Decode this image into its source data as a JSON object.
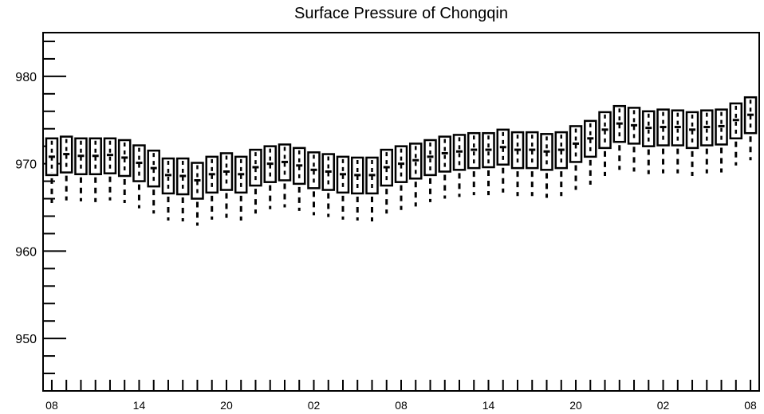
{
  "chart_data": {
    "type": "box",
    "title": "Surface Pressure of Chongqin",
    "xlabel": "",
    "ylabel": "",
    "ylim": [
      944,
      985
    ],
    "xlim": [
      -0.6,
      48.6
    ],
    "y_major_ticks": [
      950,
      960,
      970,
      980
    ],
    "y_minor_step": 2,
    "x_tick_labels": [
      {
        "x": 0,
        "label": "08"
      },
      {
        "x": 6,
        "label": "14"
      },
      {
        "x": 12,
        "label": "20"
      },
      {
        "x": 18,
        "label": "02"
      },
      {
        "x": 24,
        "label": "08"
      },
      {
        "x": 30,
        "label": "14"
      },
      {
        "x": 36,
        "label": "20"
      },
      {
        "x": 42,
        "label": "02"
      },
      {
        "x": 48,
        "label": "08"
      }
    ],
    "grid": false,
    "colors": {
      "box": "#000000",
      "background": "#ffffff"
    },
    "boxes": [
      {
        "x": 0,
        "whisker_low": 965.5,
        "q1": 968.7,
        "median": 970.8,
        "q3": 972.9
      },
      {
        "x": 1,
        "whisker_low": 965.8,
        "q1": 969.0,
        "median": 971.1,
        "q3": 973.1
      },
      {
        "x": 2,
        "whisker_low": 965.7,
        "q1": 968.8,
        "median": 970.9,
        "q3": 972.9
      },
      {
        "x": 3,
        "whisker_low": 965.6,
        "q1": 968.8,
        "median": 970.9,
        "q3": 972.9
      },
      {
        "x": 4,
        "whisker_low": 965.8,
        "q1": 968.9,
        "median": 971.0,
        "q3": 972.9
      },
      {
        "x": 5,
        "whisker_low": 965.5,
        "q1": 968.6,
        "median": 970.7,
        "q3": 972.7
      },
      {
        "x": 6,
        "whisker_low": 964.9,
        "q1": 968.0,
        "median": 970.1,
        "q3": 972.1
      },
      {
        "x": 7,
        "whisker_low": 964.3,
        "q1": 967.4,
        "median": 969.5,
        "q3": 971.5
      },
      {
        "x": 8,
        "whisker_low": 963.5,
        "q1": 966.6,
        "median": 968.7,
        "q3": 970.6
      },
      {
        "x": 9,
        "whisker_low": 963.4,
        "q1": 966.5,
        "median": 968.6,
        "q3": 970.6
      },
      {
        "x": 10,
        "whisker_low": 962.9,
        "q1": 966.0,
        "median": 968.1,
        "q3": 970.1
      },
      {
        "x": 11,
        "whisker_low": 963.6,
        "q1": 966.7,
        "median": 968.8,
        "q3": 970.8
      },
      {
        "x": 12,
        "whisker_low": 963.8,
        "q1": 967.0,
        "median": 969.1,
        "q3": 971.2
      },
      {
        "x": 13,
        "whisker_low": 963.5,
        "q1": 966.7,
        "median": 968.8,
        "q3": 970.8
      },
      {
        "x": 14,
        "whisker_low": 964.3,
        "q1": 967.5,
        "median": 969.6,
        "q3": 971.6
      },
      {
        "x": 15,
        "whisker_low": 964.8,
        "q1": 967.9,
        "median": 970.0,
        "q3": 972.0
      },
      {
        "x": 16,
        "whisker_low": 965.0,
        "q1": 968.1,
        "median": 970.2,
        "q3": 972.2
      },
      {
        "x": 17,
        "whisker_low": 964.6,
        "q1": 967.7,
        "median": 969.8,
        "q3": 971.8
      },
      {
        "x": 18,
        "whisker_low": 964.1,
        "q1": 967.2,
        "median": 969.3,
        "q3": 971.3
      },
      {
        "x": 19,
        "whisker_low": 963.9,
        "q1": 967.0,
        "median": 969.1,
        "q3": 971.1
      },
      {
        "x": 20,
        "whisker_low": 963.6,
        "q1": 966.7,
        "median": 968.8,
        "q3": 970.8
      },
      {
        "x": 21,
        "whisker_low": 963.5,
        "q1": 966.6,
        "median": 968.7,
        "q3": 970.7
      },
      {
        "x": 22,
        "whisker_low": 963.4,
        "q1": 966.6,
        "median": 968.7,
        "q3": 970.7
      },
      {
        "x": 23,
        "whisker_low": 964.3,
        "q1": 967.5,
        "median": 969.6,
        "q3": 971.6
      },
      {
        "x": 24,
        "whisker_low": 964.7,
        "q1": 967.9,
        "median": 970.0,
        "q3": 972.0
      },
      {
        "x": 25,
        "whisker_low": 965.1,
        "q1": 968.3,
        "median": 970.4,
        "q3": 972.3
      },
      {
        "x": 26,
        "whisker_low": 965.6,
        "q1": 968.7,
        "median": 970.8,
        "q3": 972.7
      },
      {
        "x": 27,
        "whisker_low": 966.0,
        "q1": 969.1,
        "median": 971.2,
        "q3": 973.1
      },
      {
        "x": 28,
        "whisker_low": 966.2,
        "q1": 969.3,
        "median": 971.4,
        "q3": 973.3
      },
      {
        "x": 29,
        "whisker_low": 966.4,
        "q1": 969.5,
        "median": 971.6,
        "q3": 973.5
      },
      {
        "x": 30,
        "whisker_low": 966.4,
        "q1": 969.6,
        "median": 971.6,
        "q3": 973.5
      },
      {
        "x": 31,
        "whisker_low": 966.7,
        "q1": 969.9,
        "median": 971.9,
        "q3": 973.9
      },
      {
        "x": 32,
        "whisker_low": 966.3,
        "q1": 969.5,
        "median": 971.6,
        "q3": 973.6
      },
      {
        "x": 33,
        "whisker_low": 966.3,
        "q1": 969.5,
        "median": 971.6,
        "q3": 973.6
      },
      {
        "x": 34,
        "whisker_low": 966.1,
        "q1": 969.3,
        "median": 971.4,
        "q3": 973.4
      },
      {
        "x": 35,
        "whisker_low": 966.3,
        "q1": 969.5,
        "median": 971.6,
        "q3": 973.6
      },
      {
        "x": 36,
        "whisker_low": 967.0,
        "q1": 970.2,
        "median": 972.3,
        "q3": 974.3
      },
      {
        "x": 37,
        "whisker_low": 967.6,
        "q1": 970.8,
        "median": 972.9,
        "q3": 974.9
      },
      {
        "x": 38,
        "whisker_low": 968.6,
        "q1": 971.8,
        "median": 973.9,
        "q3": 975.9
      },
      {
        "x": 39,
        "whisker_low": 969.3,
        "q1": 972.5,
        "median": 974.6,
        "q3": 976.6
      },
      {
        "x": 40,
        "whisker_low": 969.1,
        "q1": 972.3,
        "median": 974.4,
        "q3": 976.4
      },
      {
        "x": 41,
        "whisker_low": 968.8,
        "q1": 972.0,
        "median": 974.1,
        "q3": 976.0
      },
      {
        "x": 42,
        "whisker_low": 968.9,
        "q1": 972.1,
        "median": 974.2,
        "q3": 976.2
      },
      {
        "x": 43,
        "whisker_low": 968.9,
        "q1": 972.1,
        "median": 974.2,
        "q3": 976.1
      },
      {
        "x": 44,
        "whisker_low": 968.6,
        "q1": 971.8,
        "median": 973.9,
        "q3": 975.9
      },
      {
        "x": 45,
        "whisker_low": 968.9,
        "q1": 972.1,
        "median": 974.2,
        "q3": 976.1
      },
      {
        "x": 46,
        "whisker_low": 969.0,
        "q1": 972.2,
        "median": 974.3,
        "q3": 976.2
      },
      {
        "x": 47,
        "whisker_low": 969.8,
        "q1": 972.9,
        "median": 975.0,
        "q3": 976.9
      },
      {
        "x": 48,
        "whisker_low": 970.4,
        "q1": 973.5,
        "median": 975.6,
        "q3": 977.6
      }
    ]
  }
}
